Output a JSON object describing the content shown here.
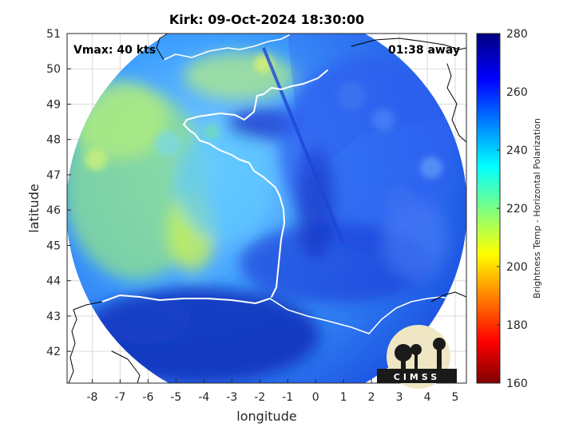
{
  "title": "Kirk: 09-Oct-2024 18:30:00",
  "annotations": {
    "vmax": "Vmax: 40 kts",
    "away": "01:38 away"
  },
  "axes": {
    "xlabel": "longitude",
    "ylabel": "latitude",
    "xlim": [
      -8.9,
      5.4
    ],
    "ylim": [
      41.1,
      51.0
    ],
    "xticks": [
      "-8",
      "-7",
      "-6",
      "-5",
      "-4",
      "-3",
      "-2",
      "-1",
      "0",
      "1",
      "2",
      "3",
      "4",
      "5"
    ],
    "yticks": [
      "42",
      "43",
      "44",
      "45",
      "46",
      "47",
      "48",
      "49",
      "50",
      "51"
    ],
    "grid": true
  },
  "colorbar": {
    "label": "Brightness Temp - Horizontal Polarization",
    "min": 160,
    "max": 280,
    "ticks": [
      "280",
      "260",
      "240",
      "220",
      "200",
      "180",
      "160"
    ],
    "colormap": "jet",
    "placement": "right"
  },
  "logo": {
    "text": "CIMSS"
  },
  "colors": {
    "land_outline": "#ffffff",
    "neighbor_outline": "#000000",
    "grid": "#d9d9d9"
  }
}
